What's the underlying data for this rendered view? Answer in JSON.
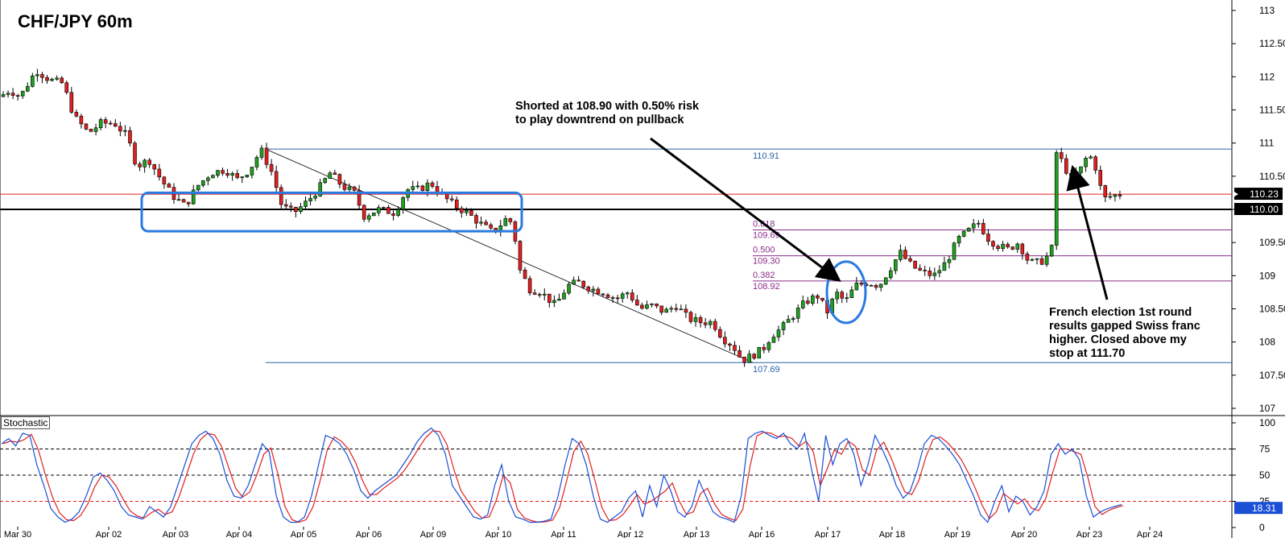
{
  "title": "CHF/JPY 60m",
  "annotations": {
    "short_note": "Shorted at 108.90 with 0.50% risk\nto play downtrend on pullback",
    "election_note": "French election 1st round\nresults gapped Swiss franc\nhigher. Closed above my\nstop at 111.70"
  },
  "colors": {
    "up_candle": "#1fa01f",
    "down_candle": "#e02020",
    "candle_outline": "#000000",
    "fib_lines": "#8b2c8b",
    "level_lines": "#2a63a8",
    "resistance_line": "#e02020",
    "support_line": "#000000",
    "highlight": "#2a7ae2",
    "stoch_k": "#1a4fd6",
    "stoch_d": "#e02020",
    "price_tag_bg": "#000000",
    "stoch_tag_bg": "#1a4fd6"
  },
  "chart_data": [
    {
      "type": "candlestick",
      "title": "CHF/JPY 60m",
      "x_ticks": [
        "Mar 30",
        "Apr 02",
        "Apr 03",
        "Apr 04",
        "Apr 05",
        "Apr 06",
        "Apr 09",
        "Apr 10",
        "Apr 11",
        "Apr 12",
        "Apr 13",
        "Apr 16",
        "Apr 17",
        "Apr 18",
        "Apr 19",
        "Apr 20",
        "Apr 23",
        "Apr 24"
      ],
      "y_ticks": [
        "113",
        "112.50",
        "112",
        "111.50",
        "111",
        "110.50",
        "110",
        "109.50",
        "109",
        "108.50",
        "108",
        "107.50",
        "107"
      ],
      "ylim": [
        107,
        113
      ],
      "current_price": "110.23",
      "horizontal_levels": [
        {
          "value": 110.23,
          "label": "110.23",
          "kind": "current"
        },
        {
          "value": 110.0,
          "label": "110.00",
          "kind": "support"
        },
        {
          "value": 110.91,
          "label": "110.91",
          "kind": "fib-high"
        },
        {
          "value": 107.69,
          "label": "107.69",
          "kind": "fib-low"
        }
      ],
      "fibonacci": [
        {
          "ratio": "0.618",
          "price": "109.69",
          "value": 109.69
        },
        {
          "ratio": "0.500",
          "price": "109.30",
          "value": 109.3
        },
        {
          "ratio": "0.382",
          "price": "108.92",
          "value": 108.92
        }
      ],
      "close_path": [
        [
          0,
          111.7
        ],
        [
          12,
          111.8
        ],
        [
          25,
          111.7
        ],
        [
          45,
          112.1
        ],
        [
          62,
          111.95
        ],
        [
          78,
          111.9
        ],
        [
          92,
          111.4
        ],
        [
          110,
          111.15
        ],
        [
          125,
          111.3
        ],
        [
          142,
          111.3
        ],
        [
          158,
          111.1
        ],
        [
          170,
          110.65
        ],
        [
          185,
          110.75
        ],
        [
          200,
          110.45
        ],
        [
          215,
          110.2
        ],
        [
          230,
          110.05
        ],
        [
          245,
          110.35
        ],
        [
          262,
          110.55
        ],
        [
          280,
          110.6
        ],
        [
          295,
          110.45
        ],
        [
          310,
          110.6
        ],
        [
          324,
          110.9
        ],
        [
          338,
          110.55
        ],
        [
          350,
          110.05
        ],
        [
          365,
          109.95
        ],
        [
          380,
          110.1
        ],
        [
          395,
          110.3
        ],
        [
          410,
          110.55
        ],
        [
          425,
          110.35
        ],
        [
          440,
          110.25
        ],
        [
          452,
          109.9
        ],
        [
          470,
          110.0
        ],
        [
          490,
          109.95
        ],
        [
          505,
          110.3
        ],
        [
          520,
          110.3
        ],
        [
          535,
          110.4
        ],
        [
          550,
          110.2
        ],
        [
          565,
          110.05
        ],
        [
          580,
          109.95
        ],
        [
          595,
          109.8
        ],
        [
          612,
          109.65
        ],
        [
          628,
          109.85
        ],
        [
          637,
          109.8
        ],
        [
          645,
          109.1
        ],
        [
          658,
          108.8
        ],
        [
          672,
          108.75
        ],
        [
          690,
          108.55
        ],
        [
          705,
          108.85
        ],
        [
          718,
          108.9
        ],
        [
          735,
          108.8
        ],
        [
          750,
          108.75
        ],
        [
          765,
          108.65
        ],
        [
          780,
          108.75
        ],
        [
          795,
          108.5
        ],
        [
          810,
          108.55
        ],
        [
          825,
          108.45
        ],
        [
          840,
          108.55
        ],
        [
          855,
          108.35
        ],
        [
          870,
          108.3
        ],
        [
          885,
          108.3
        ],
        [
          898,
          108.05
        ],
        [
          910,
          107.95
        ],
        [
          922,
          107.72
        ],
        [
          935,
          107.8
        ],
        [
          948,
          107.9
        ],
        [
          958,
          108.1
        ],
        [
          970,
          108.2
        ],
        [
          985,
          108.4
        ],
        [
          1000,
          108.6
        ],
        [
          1015,
          108.7
        ],
        [
          1028,
          108.45
        ],
        [
          1038,
          108.75
        ],
        [
          1050,
          108.6
        ],
        [
          1062,
          108.85
        ],
        [
          1078,
          108.9
        ],
        [
          1092,
          108.85
        ],
        [
          1105,
          109.1
        ],
        [
          1118,
          109.35
        ],
        [
          1132,
          109.15
        ],
        [
          1145,
          109.05
        ],
        [
          1160,
          109.0
        ],
        [
          1175,
          109.2
        ],
        [
          1190,
          109.55
        ],
        [
          1205,
          109.7
        ],
        [
          1215,
          109.8
        ],
        [
          1228,
          109.55
        ],
        [
          1240,
          109.45
        ],
        [
          1252,
          109.4
        ],
        [
          1265,
          109.5
        ],
        [
          1278,
          109.2
        ],
        [
          1292,
          109.2
        ],
        [
          1306,
          109.35
        ],
        [
          1310,
          110.9
        ],
        [
          1320,
          110.7
        ],
        [
          1330,
          110.45
        ],
        [
          1342,
          110.6
        ],
        [
          1352,
          110.85
        ],
        [
          1362,
          110.6
        ],
        [
          1370,
          110.15
        ],
        [
          1380,
          110.2
        ],
        [
          1393,
          110.23
        ]
      ],
      "candle_count": 230
    },
    {
      "type": "line",
      "title": "Stochastic",
      "y_ticks": [
        "100",
        "75",
        "50",
        "25",
        "0"
      ],
      "ylim": [
        0,
        100
      ],
      "reference_lines": [
        25,
        50,
        75
      ],
      "current_value": "18.31",
      "series": [
        {
          "key": "k",
          "values": [
            80,
            85,
            78,
            90,
            88,
            60,
            40,
            18,
            10,
            5,
            8,
            15,
            30,
            48,
            52,
            45,
            35,
            20,
            12,
            10,
            8,
            20,
            15,
            10,
            20,
            40,
            60,
            80,
            88,
            92,
            85,
            70,
            45,
            30,
            28,
            40,
            60,
            80,
            72,
            30,
            10,
            5,
            5,
            10,
            30,
            60,
            88,
            85,
            80,
            70,
            55,
            35,
            28,
            35,
            40,
            45,
            50,
            60,
            70,
            82,
            90,
            95,
            88,
            70,
            40,
            30,
            20,
            10,
            8,
            12,
            40,
            60,
            25,
            10,
            8,
            5,
            5,
            6,
            8,
            30,
            60,
            85,
            80,
            60,
            30,
            8,
            5,
            10,
            15,
            28,
            35,
            10,
            40,
            20,
            50,
            35,
            15,
            10,
            20,
            45,
            30,
            15,
            10,
            8,
            5,
            30,
            85,
            90,
            92,
            88,
            85,
            90,
            80,
            75,
            90,
            55,
            25,
            88,
            60,
            80,
            85,
            70,
            40,
            60,
            88,
            75,
            60,
            40,
            28,
            35,
            55,
            80,
            88,
            85,
            78,
            70,
            60,
            45,
            30,
            12,
            5,
            25,
            40,
            15,
            30,
            25,
            12,
            20,
            35,
            70,
            80,
            70,
            75,
            65,
            30,
            10,
            15,
            18,
            20,
            22
          ]
        }
      ]
    }
  ],
  "axis_labels_visible": true
}
